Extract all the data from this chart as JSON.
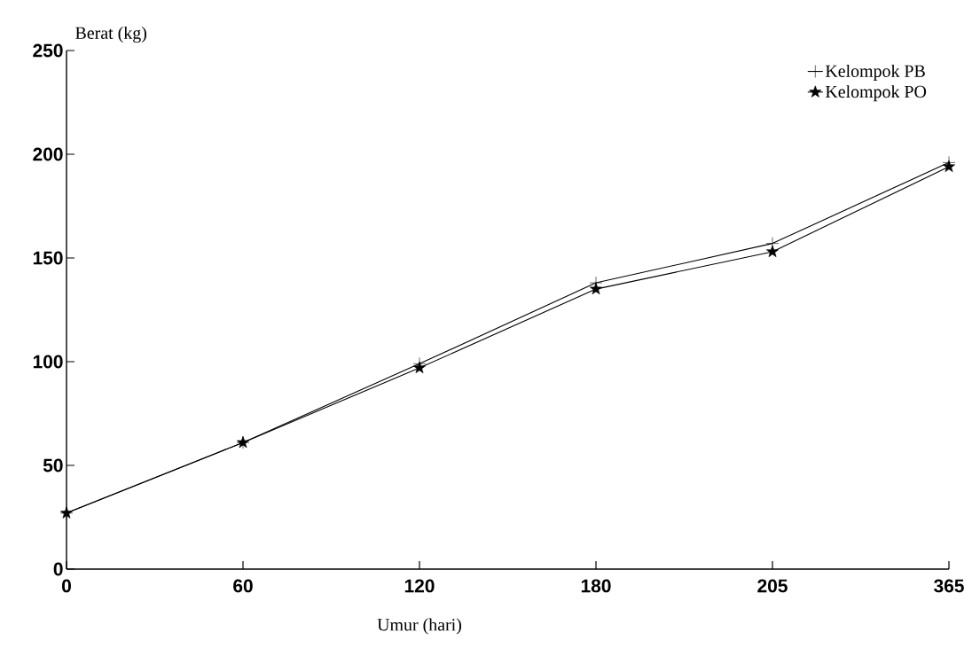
{
  "chart_data": {
    "type": "line",
    "xlabel": "Umur (hari)",
    "ylabel": "Berat (kg)",
    "categories": [
      "0",
      "60",
      "120",
      "180",
      "205",
      "365"
    ],
    "series": [
      {
        "name": "Kelompok PB",
        "color": "#000000",
        "marker": "cross",
        "values": [
          27,
          61,
          99,
          138,
          157,
          196
        ]
      },
      {
        "name": "Kelompok PO",
        "color": "#000000",
        "marker": "star",
        "values": [
          27,
          61,
          97,
          135,
          153,
          194
        ]
      }
    ],
    "ylim": [
      0,
      250
    ],
    "yticks": [
      0,
      50,
      100,
      150,
      200,
      250
    ],
    "legend": "top right",
    "grid": false
  }
}
